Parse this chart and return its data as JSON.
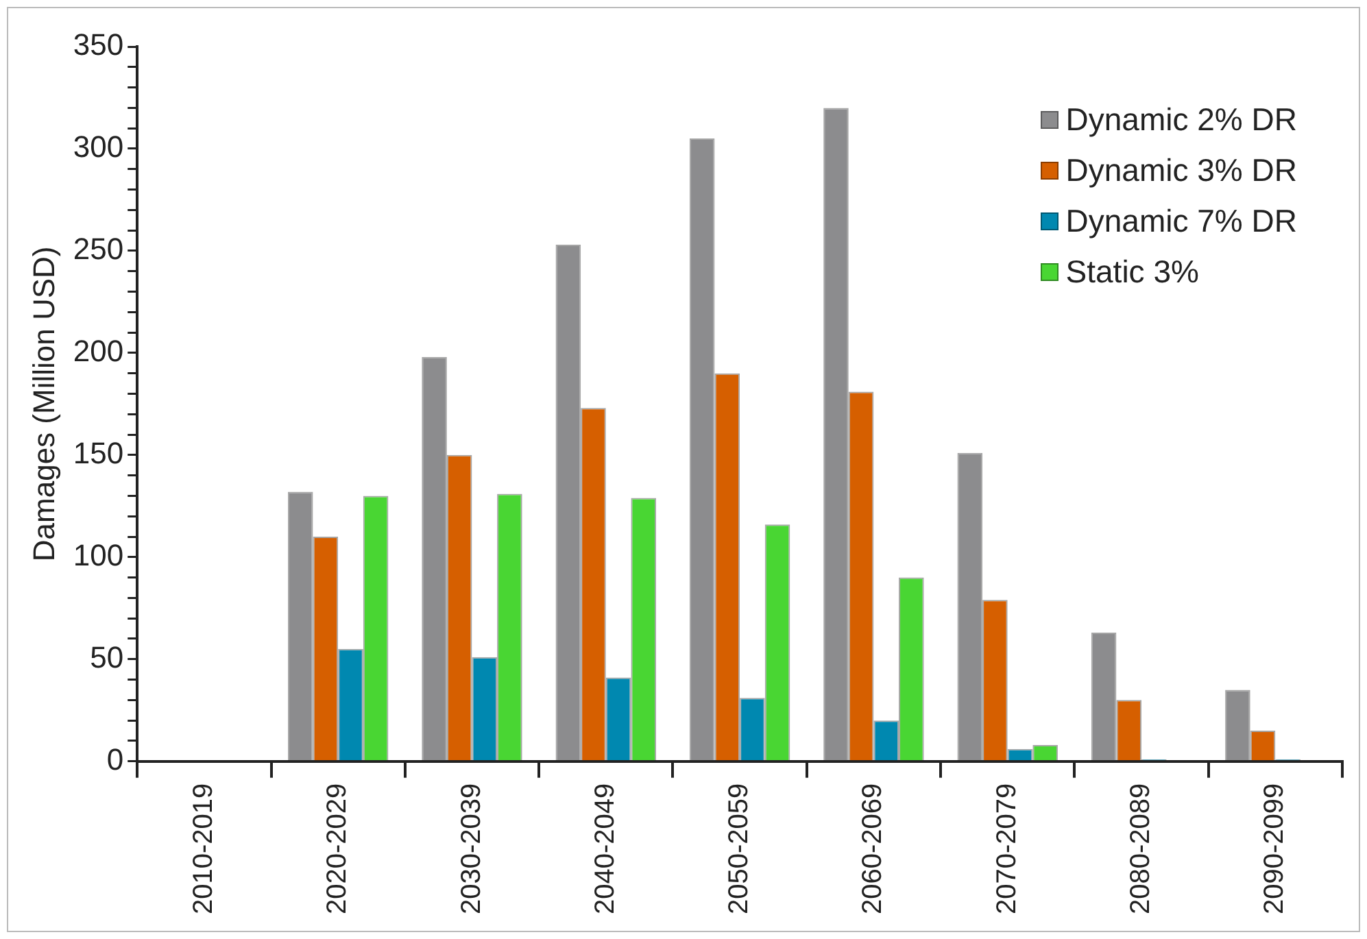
{
  "chart_data": {
    "type": "bar",
    "ylabel": "Damages (Million USD)",
    "categories": [
      "2010-2019",
      "2020-2029",
      "2030-2039",
      "2040-2049",
      "2050-2059",
      "2060-2069",
      "2070-2079",
      "2080-2089",
      "2090-2099"
    ],
    "series": [
      {
        "name": "Dynamic 2% DR",
        "color": "#8c8c8e",
        "values": [
          0,
          132,
          198,
          253,
          305,
          320,
          151,
          63,
          35
        ]
      },
      {
        "name": "Dynamic 3% DR",
        "color": "#d65f00",
        "values": [
          0,
          110,
          150,
          173,
          190,
          181,
          79,
          30,
          15
        ]
      },
      {
        "name": "Dynamic 7% DR",
        "color": "#0088b0",
        "values": [
          0,
          55,
          51,
          41,
          31,
          20,
          6,
          1,
          1
        ]
      },
      {
        "name": "Static 3%",
        "color": "#49d633",
        "values": [
          0,
          130,
          131,
          129,
          116,
          90,
          8,
          0,
          0
        ]
      }
    ],
    "ylim": [
      0,
      350
    ],
    "yticks": [
      0,
      {
        "value": 10,
        "label": null
      },
      {
        "value": 20,
        "label": null
      },
      {
        "value": 30,
        "label": null
      },
      {
        "value": 40,
        "label": null
      },
      50,
      {
        "value": 60,
        "label": null
      },
      {
        "value": 70,
        "label": null
      },
      {
        "value": 80,
        "label": null
      },
      {
        "value": 90,
        "label": null
      },
      100,
      {
        "value": 110,
        "label": null
      },
      {
        "value": 120,
        "label": null
      },
      {
        "value": 130,
        "label": null
      },
      {
        "value": 140,
        "label": null
      },
      150,
      {
        "value": 160,
        "label": null
      },
      {
        "value": 170,
        "label": null
      },
      {
        "value": 180,
        "label": null
      },
      {
        "value": 190,
        "label": null
      },
      200,
      {
        "value": 210,
        "label": null
      },
      {
        "value": 220,
        "label": null
      },
      {
        "value": 230,
        "label": null
      },
      {
        "value": 240,
        "label": null
      },
      250,
      {
        "value": 260,
        "label": null
      },
      {
        "value": 270,
        "label": null
      },
      {
        "value": 280,
        "label": null
      },
      {
        "value": 290,
        "label": null
      },
      300,
      {
        "value": 310,
        "label": null
      },
      {
        "value": 320,
        "label": null
      },
      {
        "value": 330,
        "label": null
      },
      {
        "value": 340,
        "label": null
      },
      350
    ],
    "grid": false,
    "legend": "top right"
  }
}
